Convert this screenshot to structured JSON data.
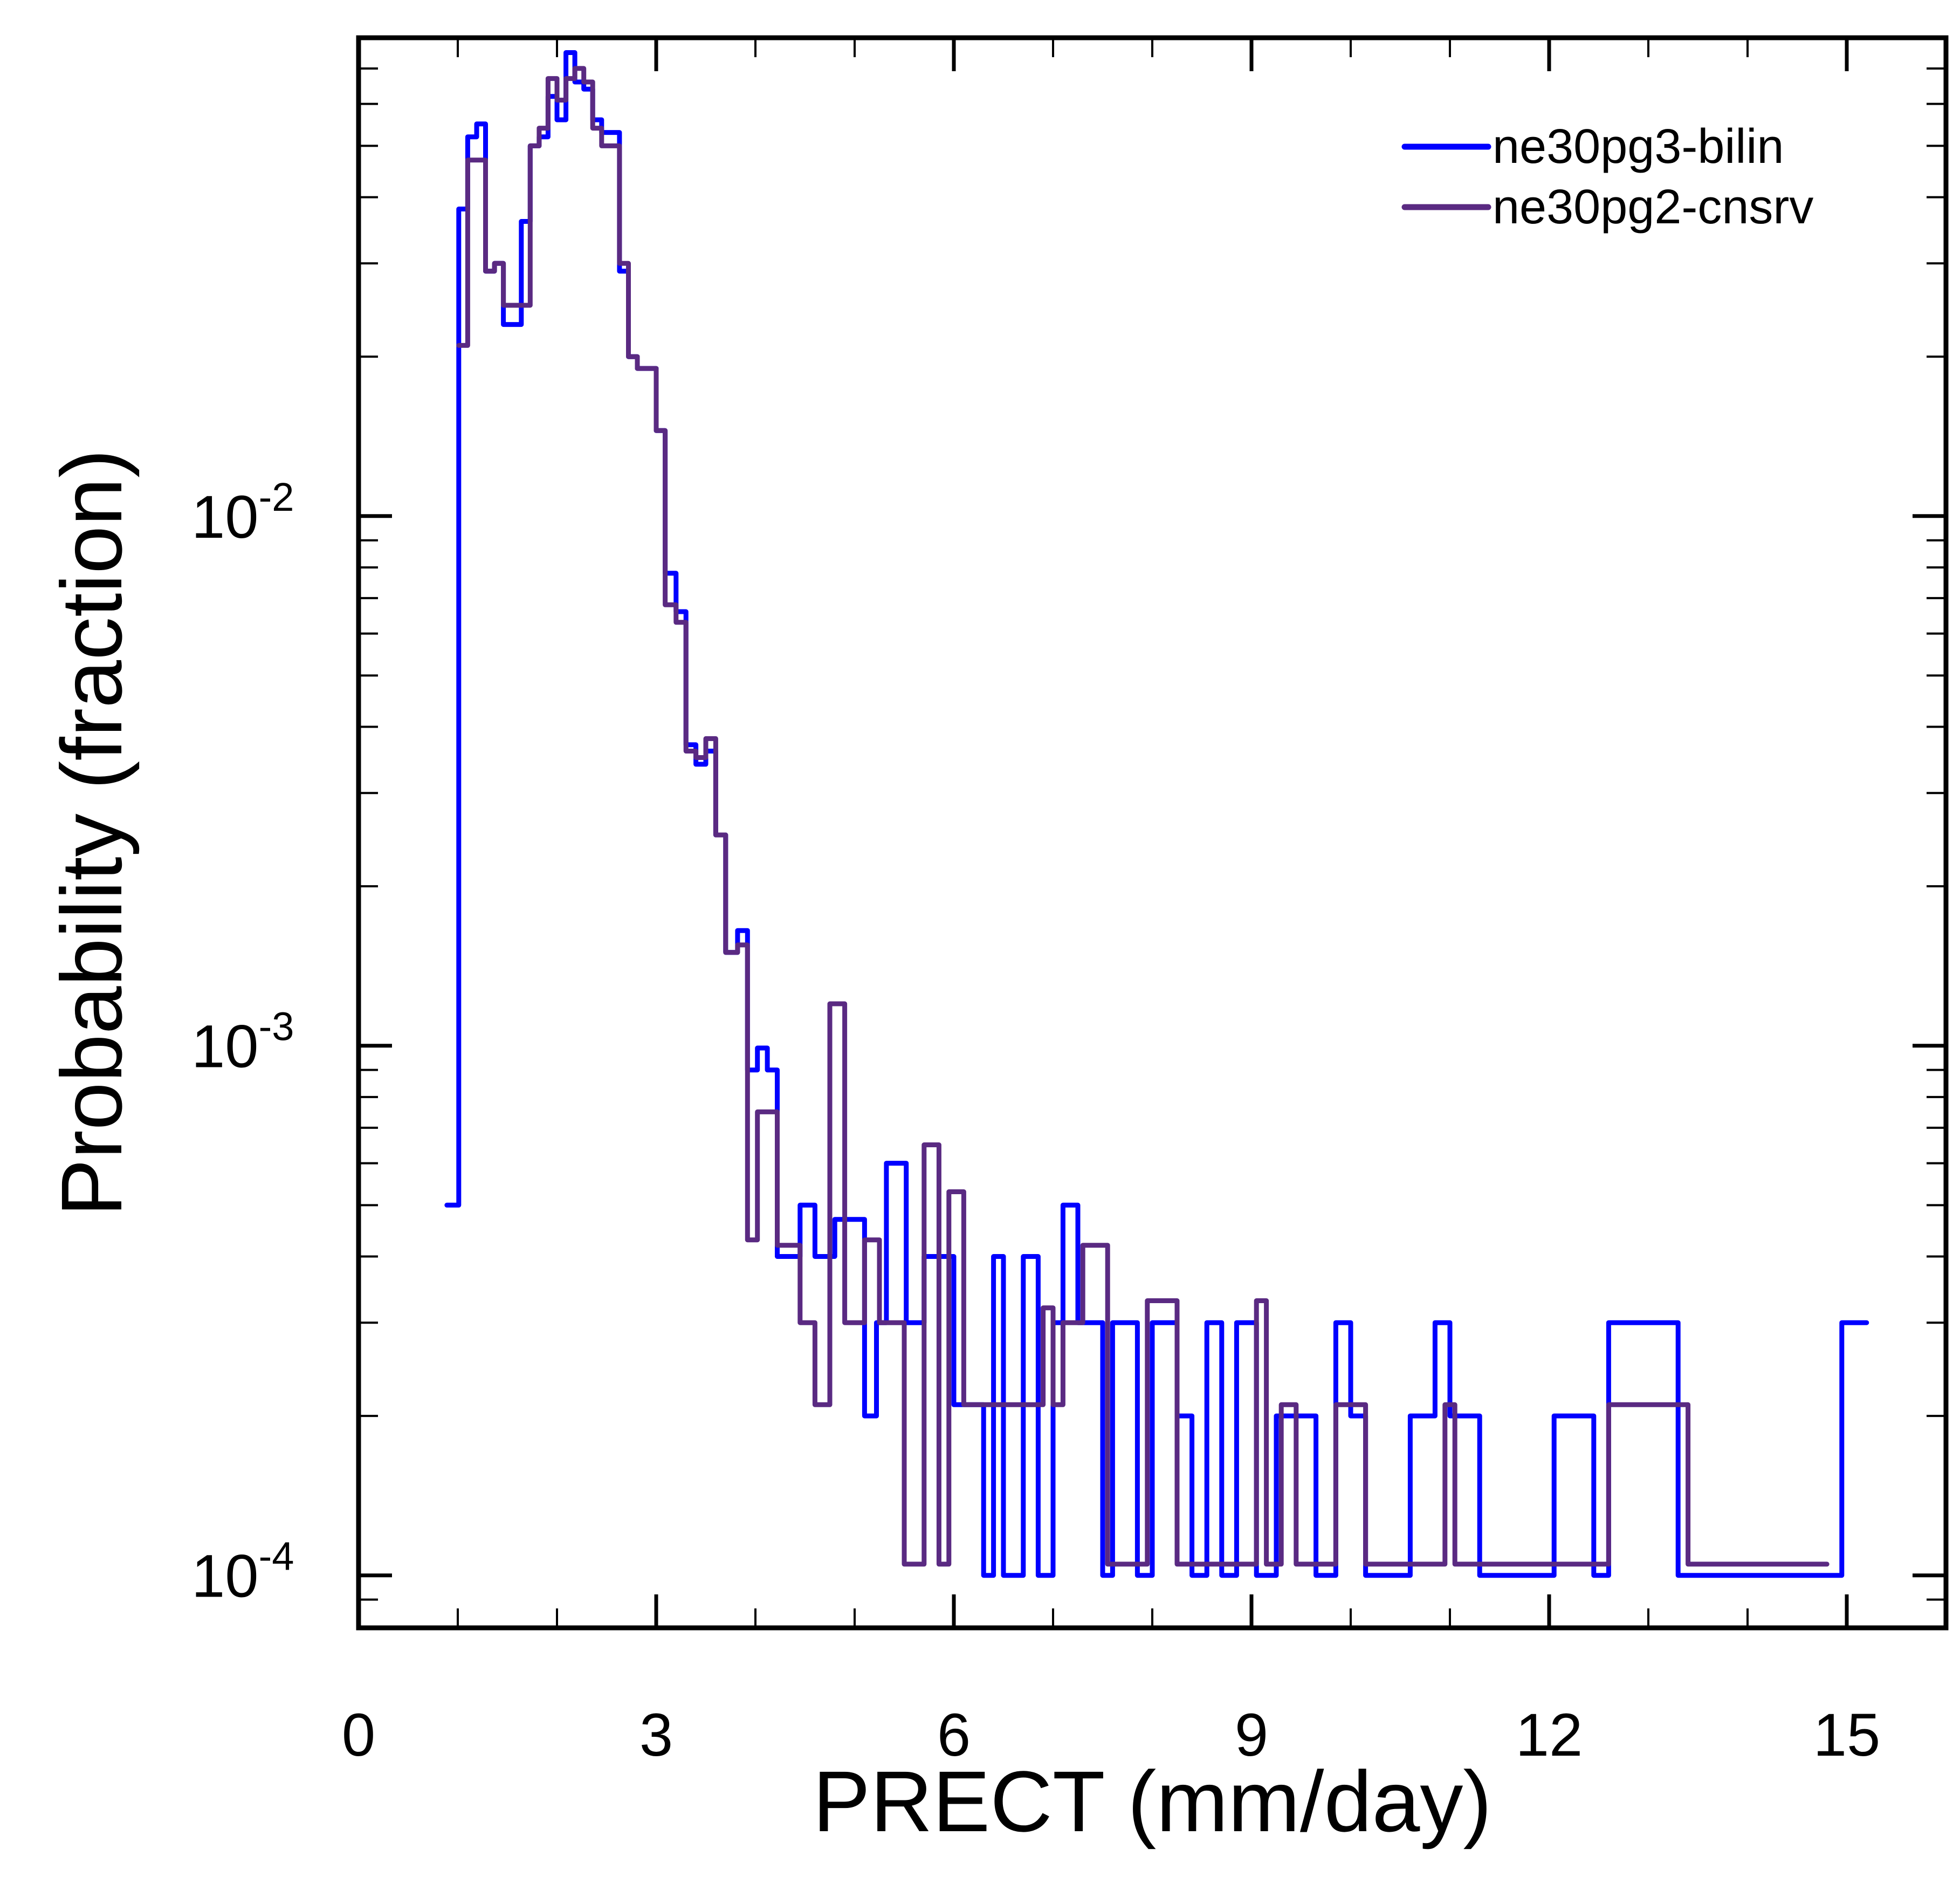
{
  "chart_data": {
    "type": "line",
    "style": "step-histogram",
    "title": "",
    "xlabel": "PRECT (mm/day)",
    "ylabel": "Probability (fraction)",
    "xlim": [
      0,
      16
    ],
    "ylim": [
      7.96e-05,
      0.08
    ],
    "yscale": "log",
    "grid": false,
    "legend_position": "top-right",
    "x_ticks": [
      0,
      3,
      6,
      9,
      12,
      15
    ],
    "x_tick_labels": [
      "0",
      "3",
      "6",
      "9",
      "12",
      "15"
    ],
    "y_ticks": [
      0.01,
      0.001,
      0.0001
    ],
    "y_tick_labels": [
      {
        "base": "10",
        "exp": "-2"
      },
      {
        "base": "10",
        "exp": "-3"
      },
      {
        "base": "10",
        "exp": "-4"
      }
    ],
    "series": [
      {
        "name": "ne30pg3-bilin",
        "color": "#0000ff",
        "steps": [
          [
            0.89,
            1.01,
            0.0005
          ],
          [
            1.01,
            1.1,
            0.038
          ],
          [
            1.1,
            1.19,
            0.052
          ],
          [
            1.19,
            1.28,
            0.055
          ],
          [
            1.28,
            1.37,
            0.029
          ],
          [
            1.37,
            1.46,
            0.03
          ],
          [
            1.46,
            1.64,
            0.023
          ],
          [
            1.64,
            1.73,
            0.036
          ],
          [
            1.73,
            1.82,
            0.05
          ],
          [
            1.82,
            1.91,
            0.052
          ],
          [
            1.91,
            2.0,
            0.062
          ],
          [
            2.0,
            2.09,
            0.056
          ],
          [
            2.09,
            2.18,
            0.075
          ],
          [
            2.18,
            2.27,
            0.066
          ],
          [
            2.27,
            2.36,
            0.064
          ],
          [
            2.36,
            2.45,
            0.056
          ],
          [
            2.45,
            2.63,
            0.053
          ],
          [
            2.63,
            2.72,
            0.029
          ],
          [
            2.72,
            2.81,
            0.02
          ],
          [
            2.81,
            3.0,
            0.019
          ],
          [
            3.0,
            3.09,
            0.0145
          ],
          [
            3.09,
            3.2,
            0.0078
          ],
          [
            3.2,
            3.3,
            0.0066
          ],
          [
            3.3,
            3.4,
            0.0037
          ],
          [
            3.4,
            3.5,
            0.0034
          ],
          [
            3.5,
            3.6,
            0.0036
          ],
          [
            3.6,
            3.7,
            0.0025
          ],
          [
            3.7,
            3.82,
            0.0015
          ],
          [
            3.82,
            3.92,
            0.00165
          ],
          [
            3.92,
            4.02,
            0.0009
          ],
          [
            4.02,
            4.12,
            0.00099
          ],
          [
            4.12,
            4.22,
            0.0009
          ],
          [
            4.22,
            4.45,
            0.0004
          ],
          [
            4.45,
            4.6,
            0.0005
          ],
          [
            4.6,
            4.8,
            0.0004
          ],
          [
            4.8,
            5.0,
            0.00047
          ],
          [
            5.0,
            5.1,
            0.00047
          ],
          [
            5.1,
            5.22,
            0.0002
          ],
          [
            5.22,
            5.32,
            0.0003
          ],
          [
            5.32,
            5.52,
            0.0006
          ],
          [
            5.52,
            5.7,
            0.0003
          ],
          [
            5.7,
            6.0,
            0.0004
          ],
          [
            6.0,
            6.3,
            0.00021
          ],
          [
            6.3,
            6.4,
            0.0001
          ],
          [
            6.4,
            6.5,
            0.0004
          ],
          [
            6.5,
            6.7,
            0.0001
          ],
          [
            6.7,
            6.85,
            0.0004
          ],
          [
            6.85,
            7.0,
            0.0001
          ],
          [
            7.0,
            7.1,
            0.0003
          ],
          [
            7.1,
            7.25,
            0.0005
          ],
          [
            7.25,
            7.5,
            0.0003
          ],
          [
            7.5,
            7.6,
            0.0001
          ],
          [
            7.6,
            7.85,
            0.0003
          ],
          [
            7.85,
            8.0,
            0.0001
          ],
          [
            8.0,
            8.25,
            0.0003
          ],
          [
            8.25,
            8.4,
            0.0002
          ],
          [
            8.4,
            8.55,
            0.0001
          ],
          [
            8.55,
            8.7,
            0.0003
          ],
          [
            8.7,
            8.85,
            0.0001
          ],
          [
            8.85,
            9.05,
            0.0003
          ],
          [
            9.05,
            9.25,
            0.0001
          ],
          [
            9.25,
            9.45,
            0.0002
          ],
          [
            9.45,
            9.65,
            0.0002
          ],
          [
            9.65,
            9.85,
            0.0001
          ],
          [
            9.85,
            10.0,
            0.0003
          ],
          [
            10.0,
            10.15,
            0.0002
          ],
          [
            10.15,
            10.6,
            0.0001
          ],
          [
            10.6,
            10.85,
            0.0002
          ],
          [
            10.85,
            11.0,
            0.0003
          ],
          [
            11.0,
            11.3,
            0.0002
          ],
          [
            11.3,
            12.05,
            0.0001
          ],
          [
            12.05,
            12.45,
            0.0002
          ],
          [
            12.45,
            12.6,
            0.0001
          ],
          [
            12.6,
            13.3,
            0.0003
          ],
          [
            13.3,
            14.95,
            0.0001
          ],
          [
            14.95,
            15.2,
            0.0003
          ]
        ]
      },
      {
        "name": "ne30pg2-cnsrv",
        "color": "#5a2a82",
        "steps": [
          [
            1.01,
            1.1,
            0.021
          ],
          [
            1.1,
            1.28,
            0.047
          ],
          [
            1.28,
            1.37,
            0.029
          ],
          [
            1.37,
            1.46,
            0.03
          ],
          [
            1.46,
            1.6,
            0.025
          ],
          [
            1.6,
            1.73,
            0.025
          ],
          [
            1.73,
            1.82,
            0.05
          ],
          [
            1.82,
            1.91,
            0.054
          ],
          [
            1.91,
            2.0,
            0.067
          ],
          [
            2.0,
            2.09,
            0.061
          ],
          [
            2.09,
            2.18,
            0.067
          ],
          [
            2.18,
            2.27,
            0.07
          ],
          [
            2.27,
            2.36,
            0.066
          ],
          [
            2.36,
            2.45,
            0.054
          ],
          [
            2.45,
            2.63,
            0.05
          ],
          [
            2.63,
            2.72,
            0.03
          ],
          [
            2.72,
            2.81,
            0.02
          ],
          [
            2.81,
            3.0,
            0.019
          ],
          [
            3.0,
            3.09,
            0.0145
          ],
          [
            3.09,
            3.2,
            0.0068
          ],
          [
            3.2,
            3.3,
            0.0063
          ],
          [
            3.3,
            3.4,
            0.0036
          ],
          [
            3.4,
            3.5,
            0.0035
          ],
          [
            3.5,
            3.6,
            0.0038
          ],
          [
            3.6,
            3.7,
            0.0025
          ],
          [
            3.7,
            3.82,
            0.0015
          ],
          [
            3.82,
            3.92,
            0.00155
          ],
          [
            3.92,
            4.02,
            0.00043
          ],
          [
            4.02,
            4.22,
            0.00075
          ],
          [
            4.22,
            4.45,
            0.00042
          ],
          [
            4.45,
            4.6,
            0.0003
          ],
          [
            4.6,
            4.75,
            0.00021
          ],
          [
            4.75,
            4.9,
            0.0012
          ],
          [
            4.9,
            5.1,
            0.0003
          ],
          [
            5.1,
            5.25,
            0.00043
          ],
          [
            5.25,
            5.5,
            0.0003
          ],
          [
            5.5,
            5.7,
            0.000105
          ],
          [
            5.7,
            5.85,
            0.00065
          ],
          [
            5.85,
            5.95,
            0.000105
          ],
          [
            5.95,
            6.1,
            0.00053
          ],
          [
            6.1,
            6.4,
            0.00021
          ],
          [
            6.4,
            6.9,
            0.00021
          ],
          [
            6.9,
            7.0,
            0.00032
          ],
          [
            7.0,
            7.1,
            0.00021
          ],
          [
            7.1,
            7.3,
            0.0003
          ],
          [
            7.3,
            7.55,
            0.00042
          ],
          [
            7.55,
            7.95,
            0.000105
          ],
          [
            7.95,
            8.25,
            0.00033
          ],
          [
            8.25,
            8.35,
            0.000105
          ],
          [
            8.35,
            8.7,
            0.000105
          ],
          [
            8.7,
            9.05,
            0.000105
          ],
          [
            9.05,
            9.15,
            0.00033
          ],
          [
            9.15,
            9.3,
            0.000105
          ],
          [
            9.3,
            9.45,
            0.00021
          ],
          [
            9.45,
            9.85,
            0.000105
          ],
          [
            9.85,
            10.0,
            0.00021
          ],
          [
            10.0,
            10.15,
            0.00021
          ],
          [
            10.15,
            10.5,
            0.000105
          ],
          [
            10.5,
            10.95,
            0.000105
          ],
          [
            10.95,
            11.05,
            0.00021
          ],
          [
            11.05,
            12.6,
            0.000105
          ],
          [
            12.6,
            13.4,
            0.00021
          ],
          [
            13.4,
            14.8,
            0.000105
          ]
        ]
      }
    ]
  }
}
